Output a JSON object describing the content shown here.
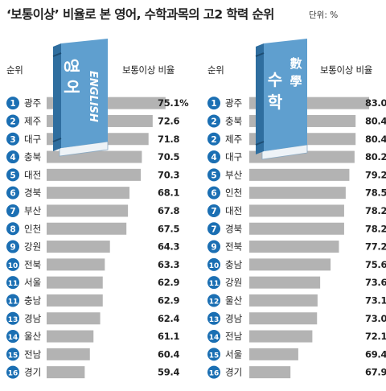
{
  "title": "‘보통이상’ 비율로 본  영어, 수학과목의 고2 학력 순위",
  "unit": "단위: %",
  "colors": {
    "bar": "#b3b3b3",
    "badge": "#1b6fb3",
    "book_cover": "#5f9fcf",
    "book_spine": "#2f6e9f",
    "book_pages": "#eef3f7",
    "text": "#222222"
  },
  "chart_data": [
    {
      "type": "bar",
      "book_title": "영어",
      "book_subtitle": "ENGLISH",
      "rank_header": "순위",
      "value_header": "보통이상 비율",
      "ranks": [
        "1",
        "2",
        "3",
        "4",
        "5",
        "6",
        "7",
        "8",
        "9",
        "10",
        "11",
        "11",
        "13",
        "14",
        "15",
        "16"
      ],
      "categories": [
        "광주",
        "제주",
        "대구",
        "충북",
        "대전",
        "경북",
        "부산",
        "인천",
        "강원",
        "전북",
        "서울",
        "충남",
        "경남",
        "울산",
        "전남",
        "경기"
      ],
      "values": [
        75.1,
        72.6,
        71.8,
        70.5,
        70.3,
        68.1,
        67.8,
        67.5,
        64.3,
        63.3,
        62.9,
        62.9,
        62.4,
        61.1,
        60.4,
        59.4
      ],
      "value_labels": [
        "75.1%",
        "72.6",
        "71.8",
        "70.5",
        "70.3",
        "68.1",
        "67.8",
        "67.5",
        "64.3",
        "63.3",
        "62.9",
        "62.9",
        "62.4",
        "61.1",
        "60.4",
        "59.4"
      ]
    },
    {
      "type": "bar",
      "book_title": "수학",
      "book_subtitle": "數學",
      "rank_header": "순위",
      "value_header": "보통이상 비율",
      "ranks": [
        "1",
        "2",
        "2",
        "4",
        "5",
        "6",
        "7",
        "7",
        "9",
        "10",
        "11",
        "12",
        "13",
        "14",
        "15",
        "16"
      ],
      "categories": [
        "광주",
        "충북",
        "제주",
        "대구",
        "부산",
        "인천",
        "대전",
        "경북",
        "전북",
        "충남",
        "강원",
        "울산",
        "경남",
        "전남",
        "서울",
        "경기"
      ],
      "values": [
        83.0,
        80.4,
        80.4,
        80.2,
        79.2,
        78.5,
        78.2,
        78.2,
        77.2,
        75.6,
        73.6,
        73.1,
        73.0,
        72.1,
        69.4,
        67.9
      ],
      "value_labels": [
        "83.0",
        "80.4",
        "80.4",
        "80.2",
        "79.2",
        "78.5",
        "78.2",
        "78.2",
        "77.2",
        "75.6",
        "73.6",
        "73.1",
        "73.0",
        "72.1",
        "69.4",
        "67.9"
      ]
    }
  ]
}
